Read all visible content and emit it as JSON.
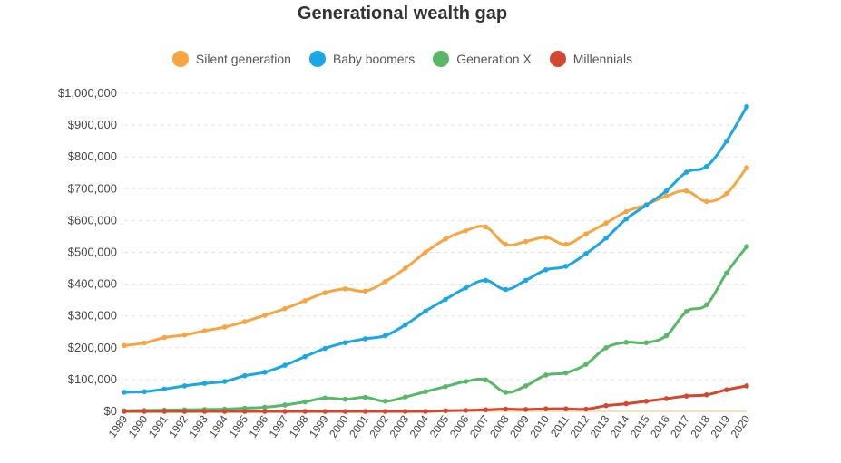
{
  "chart_data": {
    "type": "line",
    "title": "Generational wealth gap",
    "xlabel": "",
    "ylabel": "",
    "x": [
      "1989",
      "1990",
      "1991",
      "1992",
      "1993",
      "1994",
      "1995",
      "1996",
      "1997",
      "1998",
      "1999",
      "2000",
      "2001",
      "2002",
      "2003",
      "2004",
      "2005",
      "2006",
      "2007",
      "2008",
      "2009",
      "2010",
      "2011",
      "2012",
      "2013",
      "2014",
      "2015",
      "2016",
      "2017",
      "2018",
      "2019",
      "2020"
    ],
    "ylim": [
      0,
      1000000
    ],
    "y_ticks": [
      {
        "value": 0,
        "label": "$0"
      },
      {
        "value": 100000,
        "label": "$100,000"
      },
      {
        "value": 200000,
        "label": "$200,000"
      },
      {
        "value": 300000,
        "label": "$300,000"
      },
      {
        "value": 400000,
        "label": "$400,000"
      },
      {
        "value": 500000,
        "label": "$500,000"
      },
      {
        "value": 600000,
        "label": "$600,000"
      },
      {
        "value": 700000,
        "label": "$700,000"
      },
      {
        "value": 800000,
        "label": "$800,000"
      },
      {
        "value": 900000,
        "label": "$900,000"
      },
      {
        "value": 1000000,
        "label": "$1,000,000"
      }
    ],
    "grid": true,
    "legend_position": "top-center",
    "series": [
      {
        "name": "Silent generation",
        "color": "#f7a541",
        "values": [
          207000,
          215000,
          232000,
          240000,
          253000,
          265000,
          282000,
          302000,
          323000,
          348000,
          373000,
          385000,
          378000,
          408000,
          450000,
          500000,
          542000,
          568000,
          580000,
          525000,
          534000,
          547000,
          525000,
          558000,
          592000,
          628000,
          650000,
          677000,
          693000,
          660000,
          685000,
          766000
        ]
      },
      {
        "name": "Baby boomers",
        "color": "#1aa7e2",
        "values": [
          60000,
          62000,
          70000,
          80000,
          88000,
          94000,
          112000,
          123000,
          145000,
          172000,
          198000,
          216000,
          228000,
          238000,
          272000,
          315000,
          352000,
          388000,
          412000,
          383000,
          412000,
          445000,
          456000,
          496000,
          545000,
          605000,
          648000,
          693000,
          752000,
          770000,
          850000,
          958000
        ]
      },
      {
        "name": "Generation X",
        "color": "#58b868",
        "values": [
          2000,
          3000,
          4000,
          5000,
          6000,
          7000,
          10000,
          13000,
          20000,
          30000,
          42000,
          38000,
          44000,
          32000,
          45000,
          62000,
          78000,
          94000,
          99000,
          60000,
          80000,
          114000,
          121000,
          148000,
          200000,
          217000,
          216000,
          238000,
          314000,
          335000,
          435000,
          518000
        ]
      },
      {
        "name": "Millennials",
        "color": "#d2472f",
        "values": [
          0,
          0,
          0,
          0,
          0,
          0,
          0,
          0,
          0,
          0,
          0,
          0,
          0,
          0,
          0,
          0,
          2000,
          3000,
          5000,
          7000,
          6000,
          8000,
          8000,
          7000,
          18000,
          24000,
          32000,
          40000,
          48000,
          52000,
          68000,
          80000
        ]
      }
    ]
  }
}
